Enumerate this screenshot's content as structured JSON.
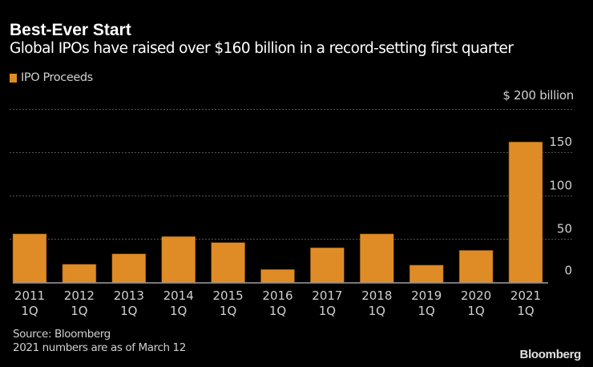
{
  "chart_data": {
    "type": "bar",
    "title": "Best-Ever Start",
    "subtitle": "Global IPOs have raised over $160 billion in a record-setting first quarter",
    "legend": [
      {
        "name": "IPO Proceeds",
        "color": "#e08c26"
      }
    ],
    "legend_position": "top-left",
    "unit_label": "$ 200  billion",
    "categories": [
      [
        "2011",
        "1Q"
      ],
      [
        "2012",
        "1Q"
      ],
      [
        "2013",
        "1Q"
      ],
      [
        "2014",
        "1Q"
      ],
      [
        "2015",
        "1Q"
      ],
      [
        "2016",
        "1Q"
      ],
      [
        "2017",
        "1Q"
      ],
      [
        "2018",
        "1Q"
      ],
      [
        "2019",
        "1Q"
      ],
      [
        "2020",
        "1Q"
      ],
      [
        "2021",
        "1Q"
      ]
    ],
    "series": [
      {
        "name": "IPO Proceeds",
        "values": [
          56,
          21,
          33,
          53,
          46,
          15,
          40,
          56,
          20,
          37,
          162
        ]
      }
    ],
    "ylim": [
      0,
      200
    ],
    "yticks": [
      0,
      50,
      100,
      150
    ],
    "ytick_labels": [
      "0",
      "50",
      "100",
      "150"
    ],
    "grid": true,
    "xlabel": "",
    "ylabel": "$ billion",
    "bar_color": "#e08c26"
  },
  "footer": {
    "source": "Source: Bloomberg",
    "note": "2021 numbers are as of March 12",
    "brand": "Bloomberg"
  }
}
